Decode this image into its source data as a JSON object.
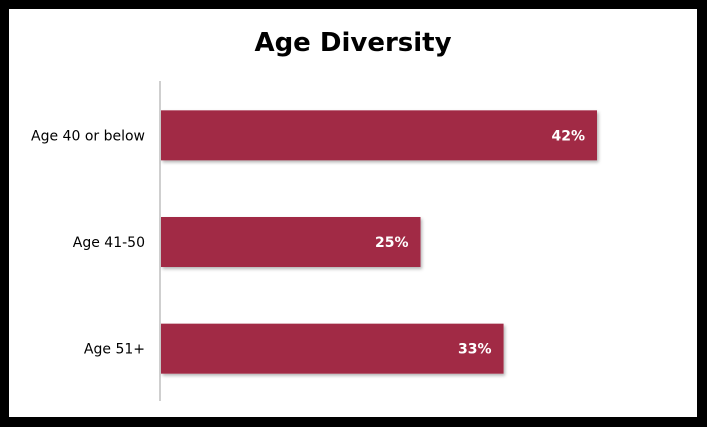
{
  "chart_data": {
    "type": "bar",
    "orientation": "horizontal",
    "title": "Age Diversity",
    "categories": [
      "Age 40 or below",
      "Age 41-50",
      "Age 51+"
    ],
    "values": [
      42,
      25,
      33
    ],
    "value_labels": [
      "42%",
      "25%",
      "33%"
    ],
    "unit": "%",
    "xlim": [
      0,
      50
    ],
    "xlabel": "",
    "ylabel": "",
    "grid": false,
    "legend": "none",
    "bar_color": "#A12A45",
    "background": "#ffffff",
    "border_color": "#000000"
  }
}
